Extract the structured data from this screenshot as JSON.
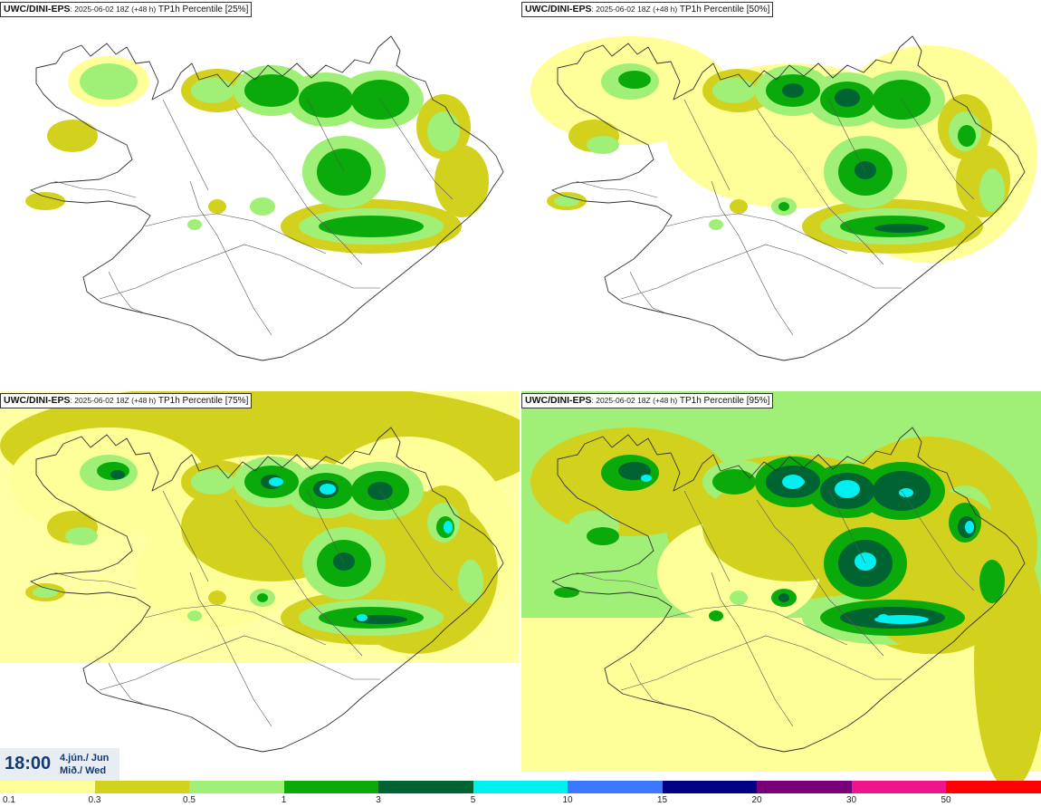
{
  "panels": [
    {
      "title_bold": "UWC/DINI-EPS",
      "title_sub": ": 2025-06-02 18Z (+48 h)",
      "title_rest": " TP1h Percentile [25%]",
      "coverage": 0.25
    },
    {
      "title_bold": "UWC/DINI-EPS",
      "title_sub": ": 2025-06-02 18Z (+48 h)",
      "title_rest": " TP1h Percentile [50%]",
      "coverage": 0.5
    },
    {
      "title_bold": "UWC/DINI-EPS",
      "title_sub": ": 2025-06-02 18Z (+48 h)",
      "title_rest": " TP1h Percentile [75%]",
      "coverage": 0.75
    },
    {
      "title_bold": "UWC/DINI-EPS",
      "title_sub": ": 2025-06-02 18Z (+48 h)",
      "title_rest": " TP1h Percentile [95%]",
      "coverage": 0.95
    }
  ],
  "valid_time": {
    "time": "18:00",
    "date_line1": "4.jún./ Jun",
    "date_line2": "Mið./ Wed"
  },
  "legend": {
    "labels": [
      "0.1",
      "0.3",
      "0.5",
      "1",
      "3",
      "5",
      "10",
      "15",
      "20",
      "30",
      "50"
    ],
    "colors": [
      "#ffff99",
      "#d2d21e",
      "#a0f078",
      "#0aaa0a",
      "#006432",
      "#00f0f0",
      "#3c78ff",
      "#000082",
      "#780078",
      "#f0148c",
      "#ff0000"
    ]
  }
}
